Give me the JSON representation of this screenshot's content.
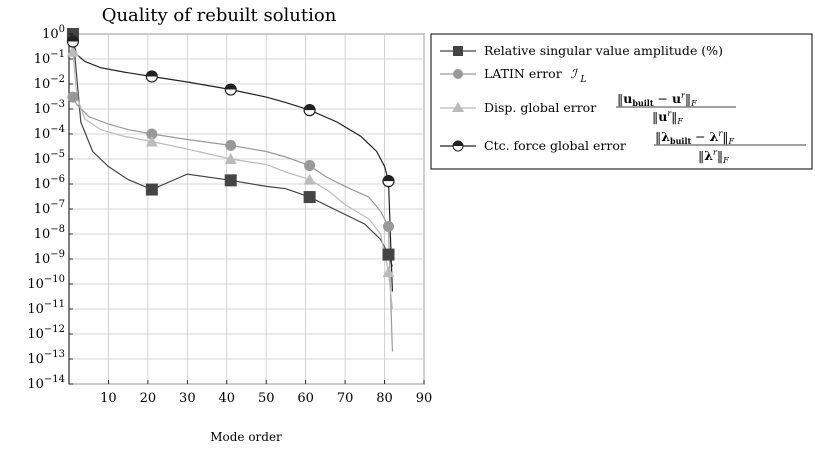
{
  "chart_data": {
    "type": "line",
    "title": "Quality of rebuilt solution",
    "xlabel": "Mode order",
    "ylabel": "",
    "xlim": [
      0,
      90
    ],
    "ylim_log10": [
      -14,
      0
    ],
    "y_scale": "log",
    "x_ticks": [
      10,
      20,
      30,
      40,
      50,
      60,
      70,
      80,
      90
    ],
    "y_ticks": [
      "10^0",
      "10^-1",
      "10^-2",
      "10^-3",
      "10^-4",
      "10^-5",
      "10^-6",
      "10^-7",
      "10^-8",
      "10^-9",
      "10^-10",
      "10^-11",
      "10^-12",
      "10^-13",
      "10^-14"
    ],
    "grid": true,
    "legend_position": "right",
    "series": [
      {
        "name": "Relative singular value amplitude (%)",
        "color": "#444444",
        "marker": "square",
        "x": [
          1,
          3,
          6,
          10,
          15,
          21,
          30,
          41,
          50,
          55,
          61,
          70,
          75,
          79,
          81,
          82
        ],
        "y": [
          1,
          0.0003,
          2e-05,
          5e-06,
          1.5e-06,
          6e-07,
          2.5e-06,
          1.4e-06,
          8e-07,
          6.5e-07,
          3e-07,
          6e-08,
          2.5e-08,
          6e-09,
          1.5e-09,
          5e-10
        ],
        "markers_x": [
          1,
          21,
          41,
          61,
          81
        ],
        "markers_y": [
          1,
          6e-07,
          1.4e-06,
          3e-07,
          1.5e-09
        ]
      },
      {
        "name": "LATIN error ℐ_L",
        "color": "#999999",
        "marker": "circle",
        "x": [
          1,
          2,
          5,
          10,
          15,
          21,
          30,
          41,
          50,
          55,
          61,
          65,
          70,
          76,
          79,
          81,
          82
        ],
        "y": [
          0.003,
          0.0015,
          0.0005,
          0.00025,
          0.00015,
          0.0001,
          6e-05,
          3.5e-05,
          2e-05,
          1.2e-05,
          5.5e-06,
          2e-06,
          8e-07,
          3e-07,
          8e-08,
          2e-08,
          2e-13
        ],
        "markers_x": [
          1,
          21,
          41,
          61,
          81
        ],
        "markers_y": [
          0.003,
          0.0001,
          3.5e-05,
          5.5e-06,
          2e-08
        ]
      },
      {
        "name": "Disp. global error",
        "color": "#bbbbbb",
        "marker": "triangle",
        "x": [
          1,
          2,
          4,
          8,
          14,
          21,
          30,
          41,
          50,
          55,
          61,
          66,
          70,
          76,
          79,
          81,
          82
        ],
        "y": [
          0.2,
          0.003,
          0.0004,
          0.00015,
          8e-05,
          5e-05,
          2.5e-05,
          1e-05,
          6e-06,
          3e-06,
          1.5e-06,
          5e-07,
          1.5e-07,
          4e-08,
          1e-08,
          3e-10,
          1e-11
        ],
        "markers_x": [
          1,
          21,
          41,
          61,
          81
        ],
        "markers_y": [
          0.2,
          5e-05,
          1e-05,
          1.5e-06,
          3e-10
        ]
      },
      {
        "name": "Ctc. force global error",
        "color": "#222222",
        "marker": "half-circle",
        "x": [
          1,
          2,
          4,
          8,
          14,
          21,
          30,
          41,
          50,
          55,
          61,
          68,
          74,
          78,
          80,
          81,
          82
        ],
        "y": [
          0.5,
          0.15,
          0.08,
          0.045,
          0.03,
          0.02,
          0.012,
          0.006,
          0.003,
          0.0018,
          0.0009,
          0.0003,
          8e-05,
          2e-05,
          5e-06,
          1.3e-06,
          5e-11
        ],
        "markers_x": [
          1,
          21,
          41,
          61,
          81
        ],
        "markers_y": [
          0.5,
          0.02,
          0.006,
          0.0009,
          1.3e-06
        ]
      }
    ]
  },
  "legend": {
    "s1_label": "Relative singular value amplitude (%)",
    "s2_label": "LATIN error",
    "s2_math": "ℐ",
    "s2_sub": "L",
    "s3_label": "Disp. global error",
    "s4_label": "Ctc. force global error"
  },
  "legend_math": {
    "u_num_bold": "u",
    "u_num_sub": "built",
    "u_num_minus": " − ",
    "u_num_bold2": "u",
    "u_sup": "r",
    "F": "F",
    "bars": "‖",
    "lam": "λ"
  }
}
